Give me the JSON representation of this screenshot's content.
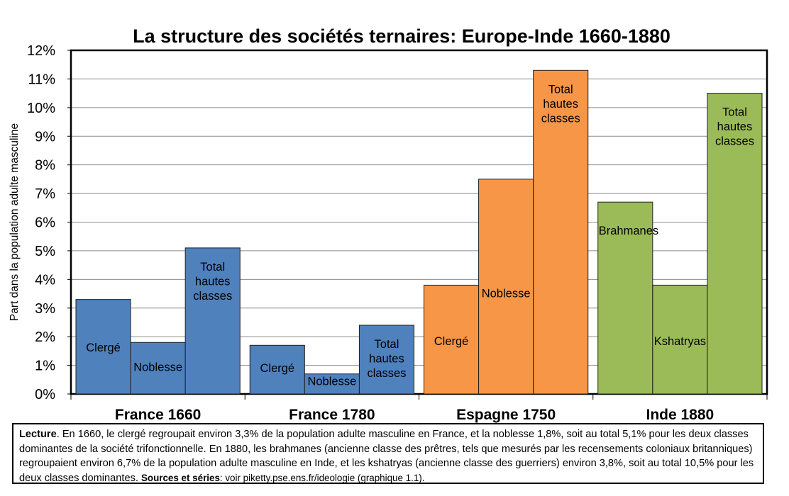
{
  "chart_data": {
    "type": "bar",
    "title": "La structure des sociétés ternaires: Europe-Inde 1660-1880",
    "ylabel": "Part dans la population adulte masculine",
    "ylim": [
      0,
      0.12
    ],
    "y_ticks": [
      0,
      0.01,
      0.02,
      0.03,
      0.04,
      0.05,
      0.06,
      0.07,
      0.08,
      0.09,
      0.1,
      0.11,
      0.12
    ],
    "y_tick_labels": [
      "0%",
      "1%",
      "2%",
      "3%",
      "4%",
      "5%",
      "6%",
      "7%",
      "8%",
      "9%",
      "10%",
      "11%",
      "12%"
    ],
    "grid": true,
    "groups": [
      {
        "name": "France 1660",
        "color": "#4f81bd",
        "bars": [
          {
            "label": [
              "Clergé"
            ],
            "value": 0.033
          },
          {
            "label": [
              "Noblesse"
            ],
            "value": 0.018
          },
          {
            "label": [
              "Total",
              "hautes",
              "classes"
            ],
            "value": 0.051
          }
        ]
      },
      {
        "name": "France 1780",
        "color": "#4f81bd",
        "bars": [
          {
            "label": [
              "Clergé"
            ],
            "value": 0.017
          },
          {
            "label": [
              "Noblesse"
            ],
            "value": 0.007
          },
          {
            "label": [
              "Total",
              "hautes",
              "classes"
            ],
            "value": 0.024
          }
        ]
      },
      {
        "name": "Espagne 1750",
        "color": "#f79646",
        "bars": [
          {
            "label": [
              "Clergé"
            ],
            "value": 0.038
          },
          {
            "label": [
              "Noblesse"
            ],
            "value": 0.075
          },
          {
            "label": [
              "Total",
              "hautes",
              "classes"
            ],
            "value": 0.113
          }
        ]
      },
      {
        "name": "Inde 1880",
        "color": "#9bbb59",
        "bars": [
          {
            "label": [
              "Brahmanes"
            ],
            "value": 0.067
          },
          {
            "label": [
              "Kshatryas"
            ],
            "value": 0.038
          },
          {
            "label": [
              "Total",
              "hautes",
              "classes"
            ],
            "value": 0.105
          }
        ]
      }
    ]
  },
  "note": {
    "lead": "Lecture",
    "text": ". En 1660, le clergé regroupait environ 3,3% de la population adulte masculine en France, et la noblesse 1,8%, soit au total 5,1% pour les deux classes dominantes de la société trifonctionnelle. En 1880, les brahmanes (ancienne classe des prêtres, tels que mesurés par les recensements coloniaux britanniques) regroupaient environ 6,7% de la population adulte masculine en Inde, et les kshatryas (ancienne classe des guerriers) environ 3,8%, soit au total 10,5% pour les deux classes dominantes. ",
    "sources_label": "Sources et séries",
    "sources_text": ": voir piketty.pse.ens.fr/ideologie (graphique 1.1)."
  }
}
